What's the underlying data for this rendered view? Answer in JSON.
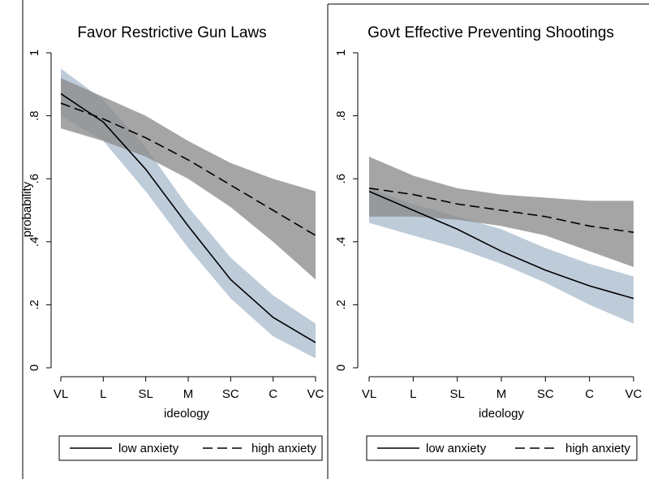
{
  "colors": {
    "band_low": "#b7c6d5",
    "band_high": "#8c8c8c",
    "line": "#000000"
  },
  "chart_data": [
    {
      "type": "line",
      "title": "Favor Restrictive Gun Laws",
      "xlabel": "ideology",
      "ylabel": "probability",
      "categories": [
        "VL",
        "L",
        "SL",
        "M",
        "SC",
        "C",
        "VC"
      ],
      "ylim": [
        0,
        1
      ],
      "yticks": [
        0,
        0.2,
        0.4,
        0.6,
        0.8,
        1
      ],
      "ytick_labels": [
        "0",
        ".2",
        ".4",
        ".6",
        ".8",
        "1"
      ],
      "grid": false,
      "legend": "bottom",
      "series": [
        {
          "name": "low anxiety",
          "style": "solid",
          "values": [
            0.87,
            0.78,
            0.63,
            0.45,
            0.28,
            0.16,
            0.08
          ],
          "ci_lower": [
            0.8,
            0.72,
            0.56,
            0.38,
            0.22,
            0.1,
            0.03
          ],
          "ci_upper": [
            0.95,
            0.85,
            0.7,
            0.51,
            0.35,
            0.23,
            0.14
          ]
        },
        {
          "name": "high anxiety",
          "style": "dashed",
          "values": [
            0.84,
            0.79,
            0.73,
            0.66,
            0.58,
            0.5,
            0.42
          ],
          "ci_lower": [
            0.76,
            0.72,
            0.67,
            0.6,
            0.51,
            0.4,
            0.28
          ],
          "ci_upper": [
            0.92,
            0.86,
            0.8,
            0.72,
            0.65,
            0.6,
            0.56
          ]
        }
      ]
    },
    {
      "type": "line",
      "title": "Govt Effective Preventing Shootings",
      "xlabel": "ideology",
      "ylabel": "",
      "categories": [
        "VL",
        "L",
        "SL",
        "M",
        "SC",
        "C",
        "VC"
      ],
      "ylim": [
        0,
        1
      ],
      "yticks": [
        0,
        0.2,
        0.4,
        0.6,
        0.8,
        1
      ],
      "ytick_labels": [
        "0",
        ".2",
        ".4",
        ".6",
        ".8",
        "1"
      ],
      "grid": false,
      "legend": "bottom",
      "series": [
        {
          "name": "low anxiety",
          "style": "solid",
          "values": [
            0.56,
            0.5,
            0.44,
            0.37,
            0.31,
            0.26,
            0.22
          ],
          "ci_lower": [
            0.46,
            0.42,
            0.38,
            0.33,
            0.27,
            0.2,
            0.14
          ],
          "ci_upper": [
            0.57,
            0.52,
            0.48,
            0.44,
            0.38,
            0.33,
            0.29
          ]
        },
        {
          "name": "high anxiety",
          "style": "dashed",
          "values": [
            0.57,
            0.55,
            0.52,
            0.5,
            0.48,
            0.45,
            0.43
          ],
          "ci_lower": [
            0.48,
            0.48,
            0.47,
            0.45,
            0.42,
            0.37,
            0.32
          ],
          "ci_upper": [
            0.67,
            0.61,
            0.57,
            0.55,
            0.54,
            0.53,
            0.53
          ]
        }
      ]
    }
  ]
}
